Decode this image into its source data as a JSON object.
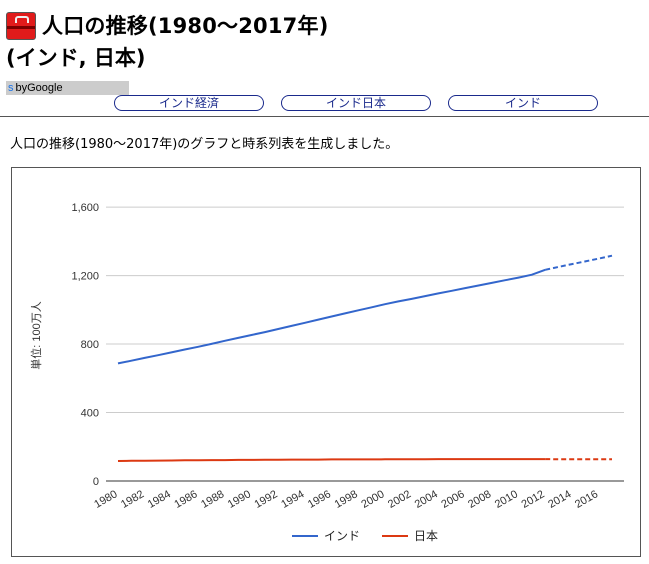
{
  "page": {
    "title_line1": "人口の推移(1980〜2017年)",
    "title_line2": "(インド, 日本)",
    "translate_prefix": "s",
    "translate_label": "byGoogle",
    "nav": [
      "インド経済",
      "インド日本",
      "インド"
    ],
    "description": "人口の推移(1980〜2017年)のグラフと時系列表を生成しました。",
    "icon": "toolbox-icon"
  },
  "chart_data": {
    "type": "line",
    "title": "",
    "xlabel": "",
    "ylabel": "単位: 100万人",
    "ylim": [
      0,
      1700
    ],
    "yticks": [
      0,
      400,
      800,
      1200,
      1600
    ],
    "ytick_labels": [
      "0",
      "400",
      "800",
      "1,200",
      "1,600"
    ],
    "x": [
      1980,
      1981,
      1982,
      1983,
      1984,
      1985,
      1986,
      1987,
      1988,
      1989,
      1990,
      1991,
      1992,
      1993,
      1994,
      1995,
      1996,
      1997,
      1998,
      1999,
      2000,
      2001,
      2002,
      2003,
      2004,
      2005,
      2006,
      2007,
      2008,
      2009,
      2010,
      2011,
      2012,
      2013,
      2014,
      2015,
      2016,
      2017
    ],
    "xtick_labels": [
      "1980",
      "1982",
      "1984",
      "1986",
      "1988",
      "1990",
      "1992",
      "1994",
      "1996",
      "1998",
      "2000",
      "2002",
      "2004",
      "2006",
      "2008",
      "2010",
      "2012",
      "2014",
      "2016"
    ],
    "grid": true,
    "legend": "bottom",
    "forecast_from": 2012,
    "series": [
      {
        "name": "インド",
        "color": "#3366cc",
        "values": [
          687,
          703,
          719,
          735,
          751,
          768,
          784,
          801,
          819,
          836,
          853,
          870,
          888,
          906,
          924,
          943,
          961,
          979,
          997,
          1015,
          1033,
          1049,
          1064,
          1080,
          1096,
          1111,
          1127,
          1142,
          1157,
          1173,
          1188,
          1205,
          1234,
          1251,
          1267,
          1283,
          1299,
          1316
        ]
      },
      {
        "name": "日本",
        "color": "#dc3912",
        "values": [
          117,
          118,
          118,
          119,
          120,
          121,
          121,
          122,
          122,
          123,
          123,
          124,
          124,
          125,
          125,
          125,
          126,
          126,
          126,
          126,
          127,
          127,
          127,
          127,
          128,
          128,
          128,
          128,
          128,
          128,
          128,
          128,
          128,
          127,
          127,
          127,
          127,
          127
        ]
      }
    ]
  }
}
